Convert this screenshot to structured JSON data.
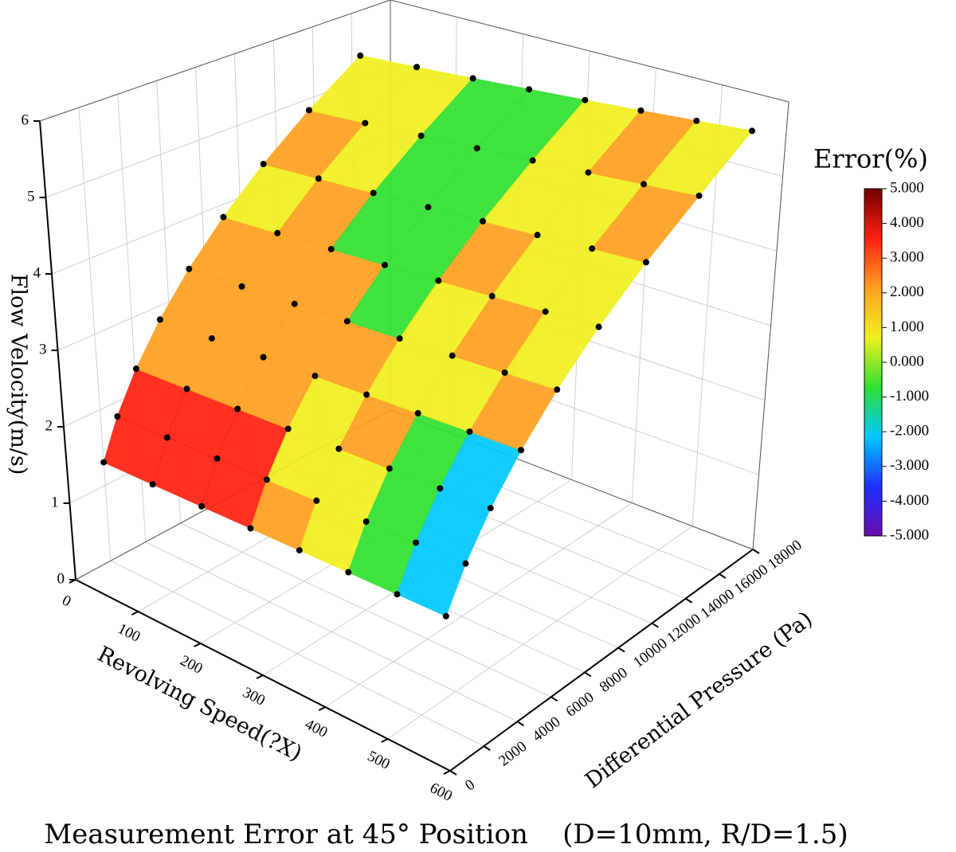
{
  "chart_data": {
    "type": "surface3d",
    "title": "Measurement Error at 45° Position    (D=10mm, R/D=1.5)",
    "x_label": "Revolving Speed(?X)",
    "y_label": "Differential Pressure (Pa)",
    "z_label": "Flow Velocity(m/s)",
    "xlim": [
      0,
      600
    ],
    "xticks": [
      0,
      100,
      200,
      300,
      400,
      500,
      600
    ],
    "ylim": [
      0,
      18000
    ],
    "yticks": [
      0,
      2000,
      4000,
      6000,
      8000,
      10000,
      12000,
      14000,
      16000,
      18000
    ],
    "zlim": [
      0,
      6
    ],
    "zticks": [
      0,
      1,
      2,
      3,
      4,
      5,
      6
    ],
    "grid": true,
    "point_color": "#000000",
    "speeds": [
      25,
      100,
      175,
      250,
      325,
      400,
      475,
      550
    ],
    "velocities": [
      1.5,
      2,
      2.5,
      3,
      3.5,
      4,
      4.5,
      5,
      5.5
    ],
    "pressures": [
      [
        1160,
        1190,
        1220,
        1250,
        1280,
        1310,
        1330,
        1360
      ],
      [
        2060,
        2110,
        2170,
        2220,
        2270,
        2320,
        2370,
        2420
      ],
      [
        3220,
        3300,
        3380,
        3460,
        3540,
        3620,
        3700,
        3780
      ],
      [
        4640,
        4760,
        4870,
        4990,
        5100,
        5210,
        5330,
        5440
      ],
      [
        6310,
        6470,
        6630,
        6790,
        6940,
        7100,
        7260,
        7410
      ],
      [
        8240,
        8450,
        8660,
        8860,
        9070,
        9280,
        9480,
        9680
      ],
      [
        10430,
        10700,
        10960,
        11220,
        11480,
        11740,
        12010,
        12250
      ],
      [
        12880,
        13200,
        13520,
        13840,
        14160,
        14480,
        14800,
        15120
      ],
      [
        15580,
        15920,
        16260,
        16600,
        16940,
        17280,
        17620,
        17960
      ]
    ],
    "colorbar": {
      "title": "Error(%)",
      "lim": [
        -5,
        5
      ],
      "colors": [
        "#6a0dad",
        "#2030ff",
        "#00c8ff",
        "#30e030",
        "#f0f020",
        "#ffa020",
        "#ff2010",
        "#700000"
      ],
      "ticks": [
        {
          "value": 5,
          "label": "5.000"
        },
        {
          "value": 4,
          "label": "4.000"
        },
        {
          "value": 3,
          "label": "3.000"
        },
        {
          "value": 2,
          "label": "2.000"
        },
        {
          "value": 1,
          "label": "1.000"
        },
        {
          "value": 0,
          "label": "0.000"
        },
        {
          "value": -1,
          "label": "-1.000"
        },
        {
          "value": -2,
          "label": "-2.000"
        },
        {
          "value": -3,
          "label": "-3.000"
        },
        {
          "value": -4,
          "label": "-4.000"
        },
        {
          "value": -5,
          "label": "-5.000"
        }
      ]
    }
  }
}
